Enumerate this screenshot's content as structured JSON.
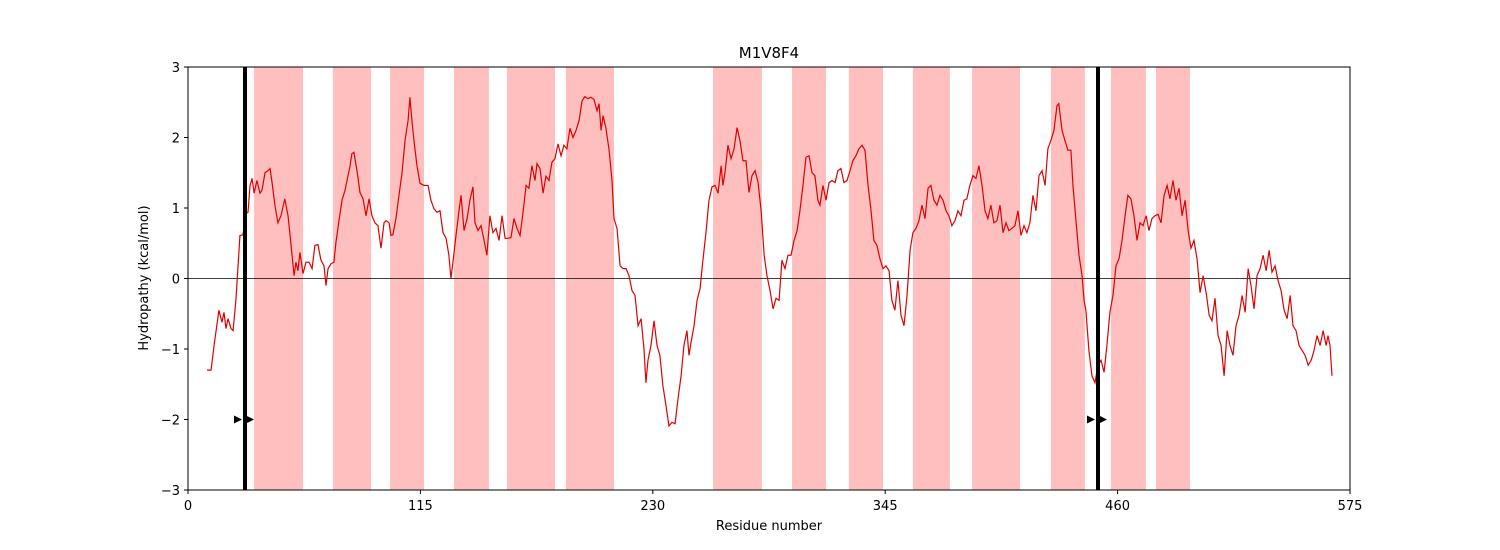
{
  "chart_data": {
    "type": "line",
    "title": "M1V8F4",
    "x_label": "Residue number",
    "y_label": "Hydropathy (kcal/mol)",
    "color": "#e00000",
    "region_color": "#ffbfbf",
    "marker_color": "#000000",
    "xlim": [
      0,
      575
    ],
    "xticks": [
      0,
      115,
      230,
      345,
      460,
      575
    ],
    "ylim": [
      -3,
      3
    ],
    "yticks": [
      {
        "value": -3,
        "label": "−3"
      },
      {
        "value": -2,
        "label": "−2"
      },
      {
        "value": -1,
        "label": "−1"
      },
      0,
      1,
      2,
      3
    ],
    "hline": 0,
    "regions": [
      [
        32.7,
        56.9
      ],
      [
        71.7,
        90.6
      ],
      [
        100,
        116.8
      ],
      [
        131.6,
        148.9
      ],
      [
        157.8,
        181.6
      ],
      [
        187,
        210.8
      ],
      [
        259.8,
        284
      ],
      [
        298.9,
        315.7
      ],
      [
        327,
        343.9
      ],
      [
        358.7,
        377
      ],
      [
        388,
        411.7
      ],
      [
        427,
        443.8
      ],
      [
        456.7,
        474
      ],
      [
        479,
        495.8
      ]
    ],
    "markers": {
      "x": [
        28.2,
        450.3
      ],
      "arrow_y": -2
    },
    "x": [
      9.4,
      11.4,
      12.9,
      15.3,
      16.8,
      17.8,
      18.8,
      19.8,
      21.3,
      22.3,
      23.7,
      25.7,
      27.2,
      28.7,
      29.7,
      30.7,
      31.7,
      32.7,
      34.1,
      35.6,
      36.6,
      38.1,
      39.6,
      40.6,
      41.6,
      43.0,
      44.5,
      46.0,
      47.9,
      49.5,
      51.0,
      52.5,
      53.4,
      54.4,
      55.4,
      56.9,
      58.4,
      59.9,
      61.4,
      62.8,
      64.3,
      65.8,
      67.3,
      68.3,
      69.3,
      70.8,
      72.2,
      73.2,
      74.7,
      76.2,
      77.7,
      78.7,
      80.2,
      81.1,
      82.1,
      83.6,
      85.1,
      86.6,
      88.1,
      89.6,
      91.0,
      92.5,
      94.0,
      95.5,
      97.0,
      98.0,
      99.5,
      100.4,
      101.4,
      102.9,
      104.4,
      105.9,
      107.4,
      108.9,
      109.8,
      110.8,
      111.8,
      113.3,
      114.8,
      116.8,
      118.8,
      120.2,
      121.7,
      123.2,
      124.7,
      126.2,
      127.7,
      129.1,
      130.1,
      131.1,
      132.6,
      134.1,
      135.1,
      136.6,
      138.1,
      139.5,
      141.0,
      142.0,
      143.5,
      145.0,
      146.5,
      147.9,
      149.4,
      150.9,
      152.4,
      153.9,
      155.4,
      156.9,
      158.3,
      159.8,
      161.3,
      162.8,
      164.3,
      165.8,
      167.3,
      168.7,
      170.2,
      171.7,
      172.7,
      174.2,
      175.7,
      177.1,
      178.6,
      180.1,
      181.6,
      183.1,
      184.6,
      186.0,
      187.5,
      189.0,
      190.5,
      192.0,
      193.5,
      195.0,
      196.4,
      197.9,
      199.4,
      200.9,
      202.4,
      203.4,
      204.4,
      205.4,
      206.8,
      208.3,
      209.8,
      210.8,
      212.3,
      213.8,
      215.3,
      216.8,
      218.2,
      219.7,
      221.2,
      222.7,
      224.2,
      225.6,
      226.6,
      227.6,
      229.1,
      230.6,
      232.1,
      233.5,
      235.0,
      236.5,
      238.0,
      239.5,
      241.0,
      242.5,
      244.0,
      245.4,
      246.9,
      247.9,
      248.9,
      250.4,
      251.9,
      253.4,
      254.8,
      256.3,
      257.8,
      259.3,
      260.8,
      262.3,
      263.8,
      264.7,
      265.7,
      267.2,
      268.7,
      270.2,
      271.7,
      273.1,
      274.6,
      276.1,
      277.6,
      279.1,
      280.6,
      282.1,
      283.6,
      285.1,
      286.5,
      288.0,
      289.5,
      291.0,
      292.5,
      293.9,
      295.4,
      296.9,
      298.4,
      299.9,
      301.4,
      302.8,
      304.3,
      305.8,
      307.3,
      308.8,
      310.2,
      311.7,
      312.7,
      314.2,
      315.7,
      317.2,
      318.7,
      320.2,
      321.6,
      323.1,
      324.6,
      326.1,
      327.6,
      329.0,
      330.5,
      332.0,
      333.5,
      335.0,
      336.5,
      338.0,
      339.4,
      340.9,
      342.4,
      343.9,
      345.4,
      346.9,
      348.3,
      349.8,
      351.3,
      352.8,
      354.3,
      355.8,
      357.3,
      358.7,
      360.2,
      361.7,
      363.2,
      364.7,
      366.2,
      367.6,
      369.1,
      370.6,
      372.1,
      373.6,
      375.1,
      376.5,
      378.0,
      379.5,
      381.0,
      382.5,
      384.0,
      385.4,
      386.9,
      388.4,
      389.9,
      391.4,
      392.9,
      394.4,
      395.8,
      397.3,
      398.8,
      400.3,
      401.8,
      403.3,
      404.8,
      406.2,
      407.7,
      409.2,
      410.7,
      412.2,
      413.7,
      415.1,
      416.6,
      418.1,
      419.6,
      421.1,
      422.6,
      424.1,
      425.5,
      427.0,
      428.5,
      430.0,
      430.9,
      432.5,
      433.9,
      435.4,
      436.9,
      437.9,
      439.4,
      440.9,
      442.4,
      443.4,
      444.3,
      445.8,
      447.3,
      448.8,
      450.3,
      451.8,
      453.3,
      454.7,
      456.2,
      457.7,
      459.2,
      460.7,
      462.2,
      463.7,
      465.1,
      466.6,
      468.1,
      469.6,
      471.1,
      472.6,
      474.1,
      475.5,
      477.0,
      478.5,
      480.0,
      481.5,
      483.0,
      484.5,
      485.9,
      487.4,
      488.9,
      490.4,
      491.9,
      493.4,
      494.9,
      496.3,
      497.8,
      499.3,
      500.8,
      502.3,
      503.8,
      505.3,
      506.7,
      508.2,
      509.7,
      511.2,
      512.7,
      514.2,
      515.6,
      517.1,
      518.6,
      520.1,
      521.6,
      523.1,
      524.6,
      526.0,
      527.5,
      529.0,
      530.5,
      532.0,
      533.5,
      535.0,
      536.4,
      537.9,
      539.4,
      540.9,
      542.4,
      543.9,
      545.4,
      546.8,
      548.3,
      549.8,
      551.3,
      552.8,
      554.3,
      555.8,
      557.2,
      558.7,
      560.2,
      561.7,
      563.2,
      564.1,
      565.1,
      566.1
    ],
    "values": [
      -1.3,
      -1.3,
      -0.95,
      -0.45,
      -0.62,
      -0.48,
      -0.71,
      -0.57,
      -0.71,
      -0.74,
      -0.31,
      0.61,
      0.62,
      0.92,
      0.94,
      1.32,
      1.42,
      1.21,
      1.39,
      1.21,
      1.25,
      1.5,
      1.53,
      1.56,
      1.36,
      1.04,
      0.79,
      0.89,
      1.13,
      0.89,
      0.47,
      0.04,
      0.23,
      0.11,
      0.37,
      0.07,
      0.23,
      0.23,
      0.14,
      0.47,
      0.48,
      0.26,
      0.18,
      -0.1,
      0.14,
      0.21,
      0.23,
      0.51,
      0.82,
      1.11,
      1.25,
      1.39,
      1.6,
      1.77,
      1.79,
      1.53,
      1.22,
      1.13,
      0.89,
      1.13,
      0.89,
      0.79,
      0.75,
      0.43,
      0.79,
      0.82,
      0.79,
      0.61,
      0.62,
      0.85,
      1.18,
      1.5,
      1.96,
      2.24,
      2.57,
      2.24,
      1.96,
      1.6,
      1.35,
      1.32,
      1.32,
      1.11,
      0.99,
      0.94,
      0.96,
      0.65,
      0.57,
      0.33,
      0.0,
      0.23,
      0.61,
      0.96,
      1.18,
      0.68,
      0.85,
      1.11,
      1.3,
      0.79,
      0.68,
      0.75,
      0.54,
      0.33,
      0.89,
      0.65,
      0.71,
      0.54,
      0.89,
      0.57,
      0.57,
      0.58,
      0.85,
      0.71,
      0.61,
      0.94,
      1.32,
      1.28,
      1.6,
      1.39,
      1.63,
      1.56,
      1.21,
      1.45,
      1.39,
      1.65,
      1.7,
      1.91,
      1.74,
      1.89,
      1.84,
      2.13,
      2.0,
      2.1,
      2.24,
      2.52,
      2.58,
      2.55,
      2.57,
      2.54,
      2.38,
      2.48,
      2.1,
      2.31,
      2.13,
      1.84,
      1.39,
      0.85,
      0.71,
      0.18,
      0.14,
      0.14,
      0.04,
      -0.17,
      -0.24,
      -0.67,
      -0.57,
      -0.99,
      -1.48,
      -1.16,
      -0.95,
      -0.6,
      -0.95,
      -1.09,
      -1.52,
      -1.8,
      -2.09,
      -2.04,
      -2.06,
      -1.7,
      -1.38,
      -0.95,
      -0.74,
      -1.09,
      -0.91,
      -0.67,
      -0.31,
      -0.14,
      0.26,
      0.65,
      1.11,
      1.3,
      1.32,
      1.21,
      1.6,
      1.32,
      1.5,
      1.89,
      1.7,
      1.84,
      2.14,
      1.96,
      1.67,
      1.67,
      1.22,
      1.46,
      1.53,
      1.36,
      0.96,
      0.33,
      0.04,
      -0.17,
      -0.43,
      -0.28,
      -0.31,
      0.26,
      0.14,
      0.33,
      0.33,
      0.54,
      0.68,
      0.96,
      1.32,
      1.72,
      1.74,
      1.5,
      1.46,
      1.11,
      1.04,
      1.32,
      1.11,
      1.36,
      1.39,
      1.36,
      1.53,
      1.56,
      1.36,
      1.39,
      1.53,
      1.67,
      1.74,
      1.84,
      1.89,
      1.82,
      1.32,
      0.96,
      0.54,
      0.47,
      0.28,
      0.14,
      0.18,
      0.11,
      -0.31,
      -0.45,
      -0.03,
      -0.52,
      -0.67,
      -0.24,
      0.4,
      0.65,
      0.71,
      0.82,
      1.04,
      0.85,
      1.28,
      1.32,
      1.11,
      1.04,
      1.18,
      1.11,
      0.96,
      0.89,
      0.75,
      0.82,
      0.96,
      0.89,
      1.11,
      1.13,
      1.32,
      1.46,
      1.42,
      1.6,
      1.32,
      0.96,
      0.85,
      1.04,
      0.79,
      0.82,
      1.04,
      0.65,
      0.79,
      0.68,
      0.71,
      0.75,
      0.96,
      0.61,
      0.75,
      0.65,
      0.79,
      1.18,
      0.96,
      1.46,
      1.53,
      1.32,
      1.84,
      1.96,
      2.1,
      2.45,
      2.48,
      2.1,
      1.96,
      1.82,
      1.82,
      1.32,
      0.82,
      0.33,
      0.04,
      -0.31,
      -0.45,
      -1.02,
      -1.38,
      -1.48,
      -1.23,
      -1.16,
      -1.33,
      -0.95,
      -0.48,
      -0.24,
      0.18,
      0.28,
      0.54,
      0.89,
      1.18,
      1.13,
      0.89,
      0.54,
      0.79,
      0.75,
      0.89,
      0.68,
      0.85,
      0.89,
      0.91,
      0.79,
      1.18,
      1.32,
      1.13,
      1.39,
      1.11,
      1.28,
      0.89,
      1.11,
      0.68,
      0.43,
      0.54,
      0.28,
      -0.2,
      0.04,
      -0.2,
      -0.52,
      -0.6,
      -0.28,
      -0.81,
      -0.95,
      -1.38,
      -0.74,
      -0.95,
      -1.09,
      -0.67,
      -0.52,
      -0.24,
      -0.48,
      0.14,
      -0.1,
      -0.43,
      0.04,
      0.14,
      0.33,
      0.11,
      0.4,
      0.09,
      0.18,
      -0.03,
      -0.17,
      -0.45,
      -0.57,
      -0.24,
      -0.67,
      -0.74,
      -0.95,
      -1.02,
      -1.09,
      -1.23,
      -1.16,
      -1.02,
      -0.81,
      -0.95,
      -0.74,
      -0.95,
      -0.81,
      -0.95,
      -1.38
    ]
  }
}
